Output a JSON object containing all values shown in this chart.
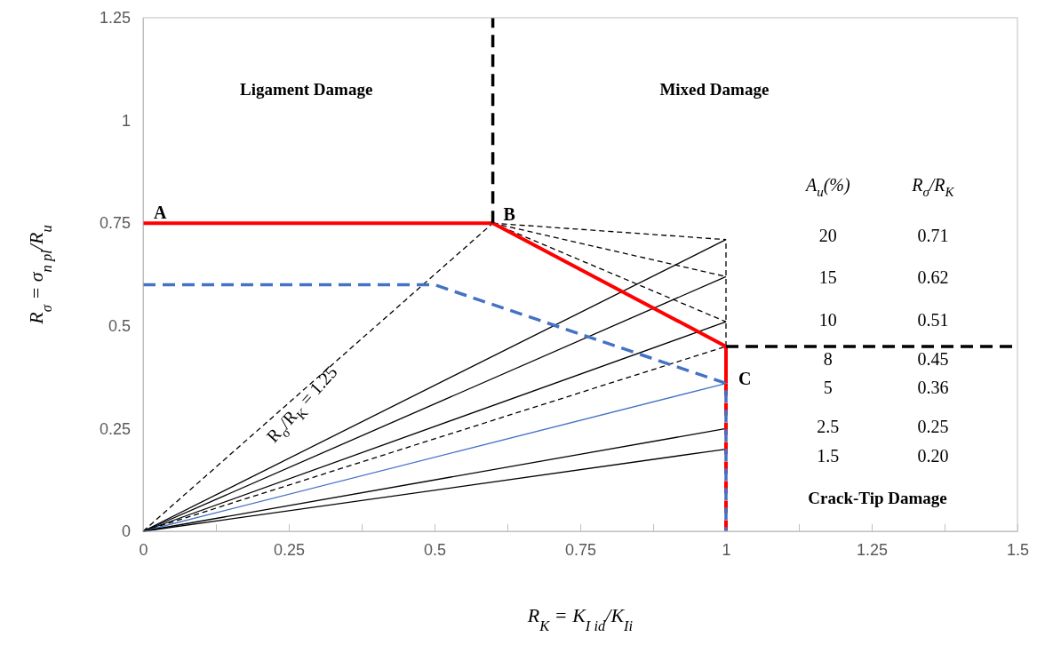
{
  "chart_data": {
    "type": "line",
    "xlabel": "R$_{K}$ = K$_{I id}$/K$_{Ii}$",
    "ylabel": "R$_{σ}$ = σ$_{n pl}$/R$_{u}$",
    "xlim": [
      0,
      1.5
    ],
    "ylim": [
      0,
      1.25
    ],
    "xticks": [
      0,
      {
        "value": 0.125,
        "label": null
      },
      0.25,
      {
        "value": 0.375,
        "label": null
      },
      0.5,
      {
        "value": 0.625,
        "label": null
      },
      0.75,
      {
        "value": 0.875,
        "label": null
      },
      1,
      {
        "value": 1.125,
        "label": null
      },
      1.25,
      {
        "value": 1.375,
        "label": null
      },
      1.5
    ],
    "yticks": [
      0,
      0.25,
      0.5,
      0.75,
      1,
      1.25
    ],
    "grid": false,
    "legend": false,
    "marker": "none",
    "series": [
      {
        "color": "#000000",
        "line_style": "solid",
        "x": [
          0,
          1
        ],
        "values": [
          0,
          0.71
        ]
      },
      {
        "color": "#000000",
        "line_style": "solid",
        "x": [
          0,
          1
        ],
        "values": [
          0,
          0.62
        ]
      },
      {
        "color": "#000000",
        "line_style": "solid",
        "x": [
          0,
          1
        ],
        "values": [
          0,
          0.51
        ]
      },
      {
        "color": "#000000",
        "line_style": "dashed",
        "x": [
          0,
          1
        ],
        "values": [
          0,
          0.45
        ]
      },
      {
        "color": "#4472c4",
        "line_style": "solid",
        "x": [
          0,
          1
        ],
        "values": [
          0,
          0.36
        ]
      },
      {
        "color": "#000000",
        "line_style": "solid",
        "x": [
          0,
          1
        ],
        "values": [
          0,
          0.25
        ]
      },
      {
        "color": "#000000",
        "line_style": "solid",
        "x": [
          0,
          1
        ],
        "values": [
          0,
          0.2
        ]
      },
      {
        "color": "#000000",
        "line_style": "dashed",
        "x": [
          0,
          0.6
        ],
        "values": [
          0,
          0.75
        ]
      },
      {
        "color": "#000000",
        "line_style": "dashed",
        "x": [
          0.6,
          1
        ],
        "values": [
          0.75,
          0.71
        ]
      },
      {
        "color": "#000000",
        "line_style": "dashed",
        "x": [
          0.6,
          1
        ],
        "values": [
          0.75,
          0.62
        ]
      },
      {
        "color": "#000000",
        "line_style": "dashed",
        "x": [
          0.6,
          1
        ],
        "values": [
          0.75,
          0.51
        ]
      },
      {
        "color": "#000000",
        "line_style": "dashed",
        "x": [
          1,
          1
        ],
        "values": [
          0.45,
          0.71
        ]
      },
      {
        "color": "#ff0000",
        "line_style": "solid",
        "x": [
          0,
          0.6,
          1,
          1
        ],
        "values": [
          0.75,
          0.75,
          0.45,
          0.36
        ]
      },
      {
        "color": "#ff0000",
        "line_style": "dashed",
        "x": [
          1,
          1
        ],
        "values": [
          0.36,
          0
        ]
      },
      {
        "color": "#4472c4",
        "line_style": "dashed",
        "x": [
          0,
          0.5,
          1,
          1
        ],
        "values": [
          0.6,
          0.6,
          0.36,
          0
        ]
      },
      {
        "color": "#000000",
        "line_style": "dashed",
        "x": [
          0.6,
          0.6
        ],
        "values": [
          0.75,
          1.25
        ]
      },
      {
        "color": "#000000",
        "line_style": "dashed",
        "x": [
          1,
          1.5
        ],
        "values": [
          0.45,
          0.45
        ]
      }
    ],
    "annotations": [
      "Ligament Damage",
      "Mixed Damage",
      "Crack-Tip Damage",
      {
        "text": "A",
        "x": 0,
        "y": 0.75
      },
      {
        "text": "B",
        "x": 0.6,
        "y": 0.75
      },
      {
        "text": "C",
        "x": 1,
        "y": 0.45
      },
      {
        "text": "R$_{σ}$/R$_{K}$ = 1.25",
        "x": 0.25,
        "y": 0.32
      },
      "A$_{u}$(%)",
      "R$_{σ}$/R$_{K}$",
      "20",
      "0.71",
      "15",
      "0.62",
      "10",
      "0.51",
      "8",
      "0.45",
      "5",
      "0.36",
      "2.5",
      "0.25",
      "1.5",
      "0.20"
    ]
  }
}
